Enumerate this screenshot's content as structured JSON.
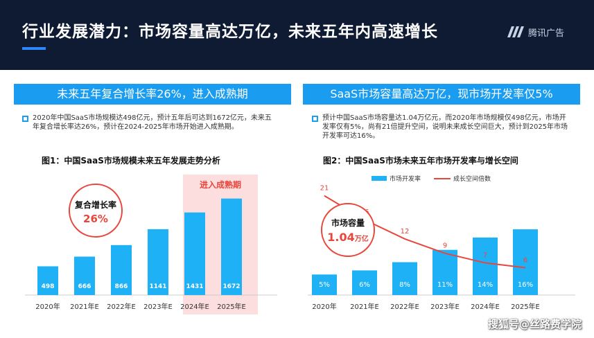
{
  "header": {
    "title": "行业发展潜力：市场容量高达万亿，未来五年内高速增长",
    "logo_text": "腾讯广告"
  },
  "left": {
    "panel_title": "未来五年复合增长率26%，进入成熟期",
    "paragraph": "2020年中国SaaS市场规模达498亿元，预计五年后可达到1672亿元，未来五年复合增长率达26%，预计在2024-2025年市场开始进入成熟期。",
    "figure_title": "图1：中国SaaS市场规模未来五年发展走势分析",
    "mature_label": "进入成熟期",
    "cagr_label": "复合增长率",
    "cagr_value": "26%"
  },
  "right": {
    "panel_title": "SaaS市场容量高达万亿，现市场开发率仅5%",
    "paragraph": "预计中国SaaS市场容量达1.04万亿元，而2020年市场规模仅498亿元，市场开发率仅有5%，尚有21倍提升空间，说明未来成长空间巨大，预计到2025年市场开发率可达16%。",
    "figure_title": "图2：中国SaaS市场未来五年市场开发率与增长空间",
    "legend_bar": "市场开发率",
    "legend_line": "成长空间倍数",
    "capacity_label": "市场容量",
    "capacity_value": "1.04",
    "capacity_unit": "万亿"
  },
  "chart_data": [
    {
      "type": "bar",
      "title": "图1：中国SaaS市场规模未来五年发展走势分析",
      "categories": [
        "2020年",
        "2021年E",
        "2022年E",
        "2023年E",
        "2024年E",
        "2025年E"
      ],
      "values": [
        498,
        666,
        866,
        1141,
        1431,
        1672
      ],
      "ylim": [
        0,
        1800
      ],
      "highlight_categories": [
        "2024年E",
        "2025年E"
      ],
      "color": "#1fb1f5",
      "highlight_color": "#fcdede"
    },
    {
      "type": "bar",
      "title": "图2：中国SaaS市场未来五年市场开发率与增长空间",
      "categories": [
        "2020年",
        "2021年E",
        "2022年E",
        "2023年E",
        "2024年E",
        "2025年E"
      ],
      "series": [
        {
          "name": "市场开发率",
          "type": "bar",
          "values": [
            5,
            6,
            8,
            11,
            14,
            16
          ],
          "labels": [
            "5%",
            "6%",
            "8%",
            "11%",
            "14%",
            "16%"
          ],
          "color": "#1fb1f5"
        },
        {
          "name": "成长空间倍数",
          "type": "line",
          "values": [
            21,
            16,
            12,
            9,
            7,
            6
          ],
          "color": "#e8463c"
        }
      ],
      "ylim_bar": [
        0,
        30
      ],
      "ylim_line": [
        0,
        26
      ],
      "legend_position": "top"
    }
  ],
  "watermark": "搜狐号@丝路费学院"
}
